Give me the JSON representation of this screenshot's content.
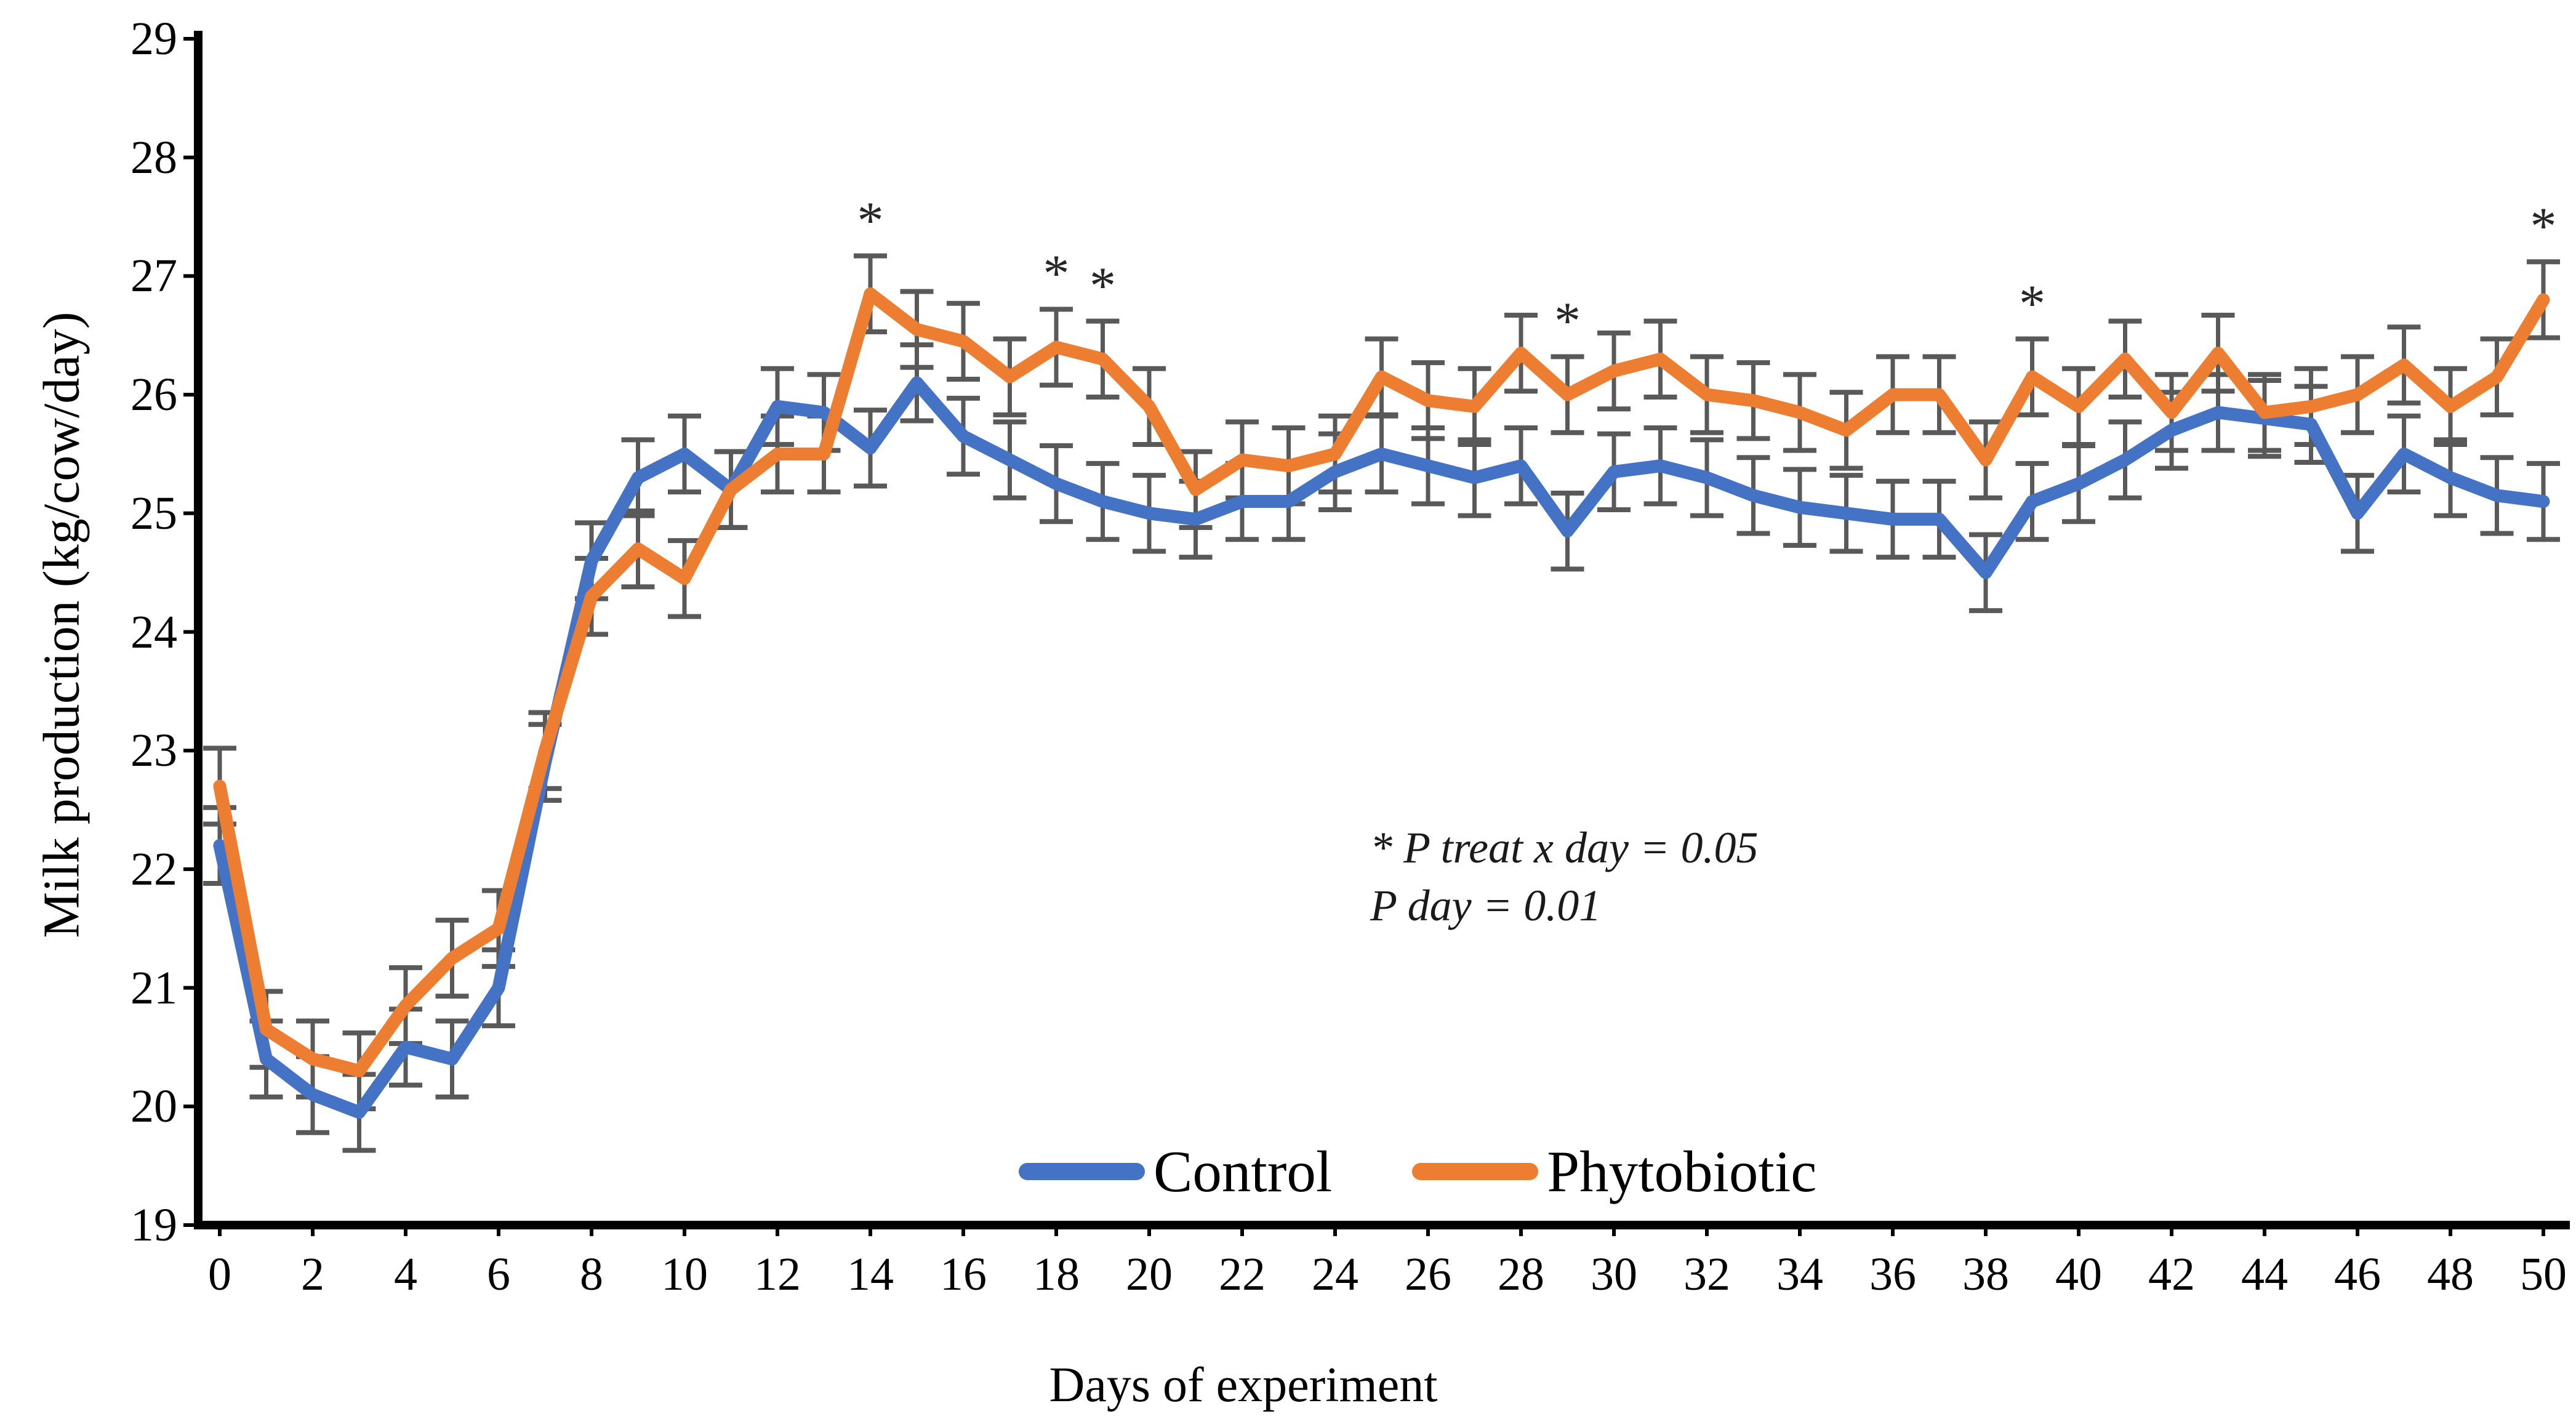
{
  "figure": {
    "y_axis_title": "Milk production (kg/cow/day)",
    "x_axis_title": "Days of experiment",
    "annotation": {
      "line1": "* P treat x day = 0.05",
      "line2": "P day = 0.01"
    },
    "axis_color": "#000000"
  },
  "chart_data": {
    "type": "line",
    "title": "",
    "xlabel": "Days of experiment",
    "ylabel": "Milk production (kg/cow/day)",
    "ylim": [
      19,
      29
    ],
    "yticks": [
      19,
      20,
      21,
      22,
      23,
      24,
      25,
      26,
      27,
      28,
      29
    ],
    "xticks": [
      0,
      2,
      4,
      6,
      8,
      10,
      12,
      14,
      16,
      18,
      20,
      22,
      24,
      26,
      28,
      30,
      32,
      34,
      36,
      38,
      40,
      42,
      44,
      46,
      48,
      50
    ],
    "x": [
      0,
      1,
      2,
      3,
      4,
      5,
      6,
      7,
      8,
      9,
      10,
      11,
      12,
      13,
      14,
      15,
      16,
      17,
      18,
      19,
      20,
      21,
      22,
      23,
      24,
      25,
      26,
      27,
      28,
      29,
      30,
      31,
      32,
      33,
      34,
      35,
      36,
      37,
      38,
      39,
      40,
      41,
      42,
      43,
      44,
      45,
      46,
      47,
      48,
      49,
      50
    ],
    "series": [
      {
        "name": "Control",
        "color": "#4472C4",
        "values": [
          22.2,
          20.4,
          20.1,
          19.95,
          20.5,
          20.4,
          21.0,
          22.9,
          24.6,
          25.3,
          25.5,
          25.2,
          25.9,
          25.85,
          25.55,
          26.1,
          25.65,
          25.45,
          25.25,
          25.1,
          25.0,
          24.95,
          25.1,
          25.1,
          25.35,
          25.5,
          25.4,
          25.3,
          25.4,
          24.85,
          25.35,
          25.4,
          25.3,
          25.15,
          25.05,
          25.0,
          24.95,
          24.95,
          24.5,
          25.1,
          25.25,
          25.45,
          25.7,
          25.85,
          25.8,
          25.75,
          25.0,
          25.5,
          25.3,
          25.15,
          25.1
        ]
      },
      {
        "name": "Phytobiotic",
        "color": "#ED7D31",
        "values": [
          22.7,
          20.65,
          20.4,
          20.3,
          20.85,
          21.25,
          21.5,
          23.0,
          24.3,
          24.7,
          24.45,
          25.2,
          25.5,
          25.5,
          26.85,
          26.55,
          26.45,
          26.15,
          26.4,
          26.3,
          25.9,
          25.2,
          25.45,
          25.4,
          25.5,
          26.15,
          25.95,
          25.9,
          26.35,
          26.0,
          26.2,
          26.3,
          26.0,
          25.95,
          25.85,
          25.7,
          26.0,
          26.0,
          25.45,
          26.15,
          25.9,
          26.3,
          25.85,
          26.35,
          25.85,
          25.9,
          26.0,
          26.25,
          25.9,
          26.15,
          26.8
        ]
      }
    ],
    "error_bars": {
      "half_height": 0.32,
      "color": "#595959",
      "applies_to": "both series, every day"
    },
    "significance": {
      "marker": "*",
      "days": [
        14,
        18,
        19,
        29,
        39,
        50
      ],
      "placement": "above Phytobiotic error bar"
    },
    "legend_entries": [
      "Control",
      "Phytobiotic"
    ],
    "legend_position": "bottom-center-inside",
    "grid": false
  }
}
